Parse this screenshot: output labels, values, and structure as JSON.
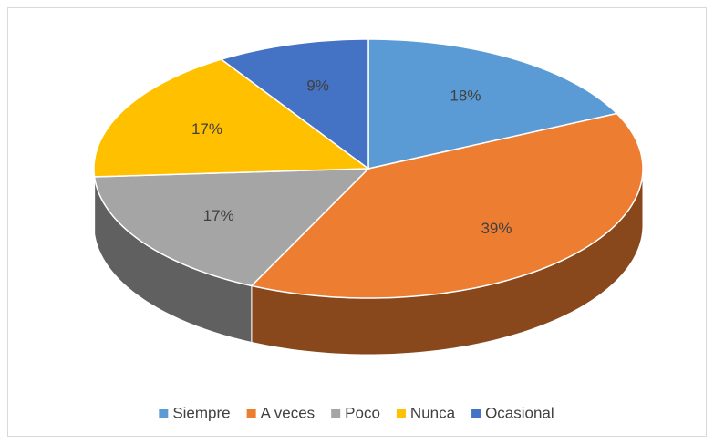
{
  "chart_data": {
    "type": "pie",
    "categories": [
      "Siempre",
      "A veces",
      "Poco",
      "Nunca",
      "Ocasional"
    ],
    "values": [
      18,
      39,
      17,
      17,
      9
    ],
    "value_labels": [
      "18%",
      "39%",
      "17%",
      "17%",
      "9%"
    ],
    "colors": [
      "#5b9bd5",
      "#ed7d31",
      "#a5a5a5",
      "#ffc000",
      "#4472c4"
    ],
    "legend": "bottom"
  }
}
